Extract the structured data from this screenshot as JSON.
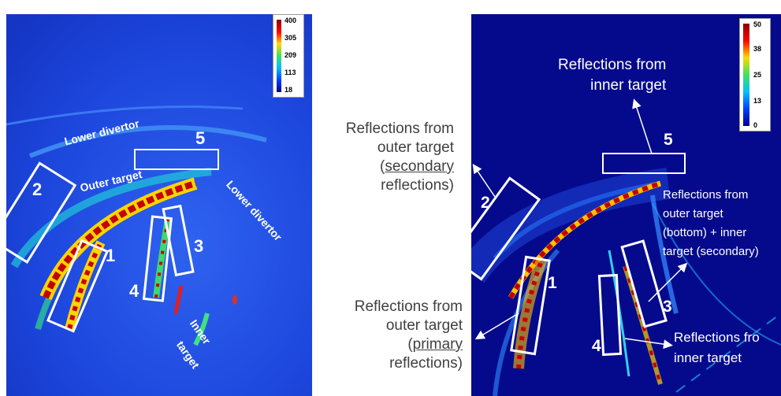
{
  "left_image": {
    "colorbar_ticks": [
      "400",
      "305",
      "209",
      "113",
      "18"
    ],
    "labels": {
      "lower_divertor_top": "Lower divertor",
      "outer_target": "Outer target",
      "lower_divertor_right": "Lower divertor",
      "inner_target_line1": "Inner",
      "inner_target_line2": "target"
    },
    "region_numbers": [
      "1",
      "2",
      "3",
      "4",
      "5"
    ]
  },
  "middle_annotations": {
    "secondary": {
      "line1": "Reflections from",
      "line2": "outer target",
      "line3": "secondary",
      "line4": "reflections)"
    },
    "primary": {
      "line1": "Reflections from",
      "line2": "outer target",
      "line3": "primary",
      "line4": "reflections)"
    }
  },
  "right_image": {
    "colorbar_ticks": [
      "50",
      "38",
      "25",
      "13",
      "0"
    ],
    "region_numbers": [
      "1",
      "2",
      "3",
      "4",
      "5"
    ],
    "notes": {
      "inner_top_line1": "Reflections from",
      "inner_top_line2": "inner target",
      "mixed_line1": "Reflections from",
      "mixed_line2": "outer target",
      "mixed_line3": "(bottom) + inner",
      "mixed_line4": "target (secondary)",
      "inner_bottom_line1": "Reflections fro",
      "inner_bottom_line2": "inner target"
    }
  },
  "colors": {
    "left_bg": "#1a3fd9",
    "right_bg": "#050a8c",
    "hot": "#c00000",
    "text": "#404040"
  }
}
